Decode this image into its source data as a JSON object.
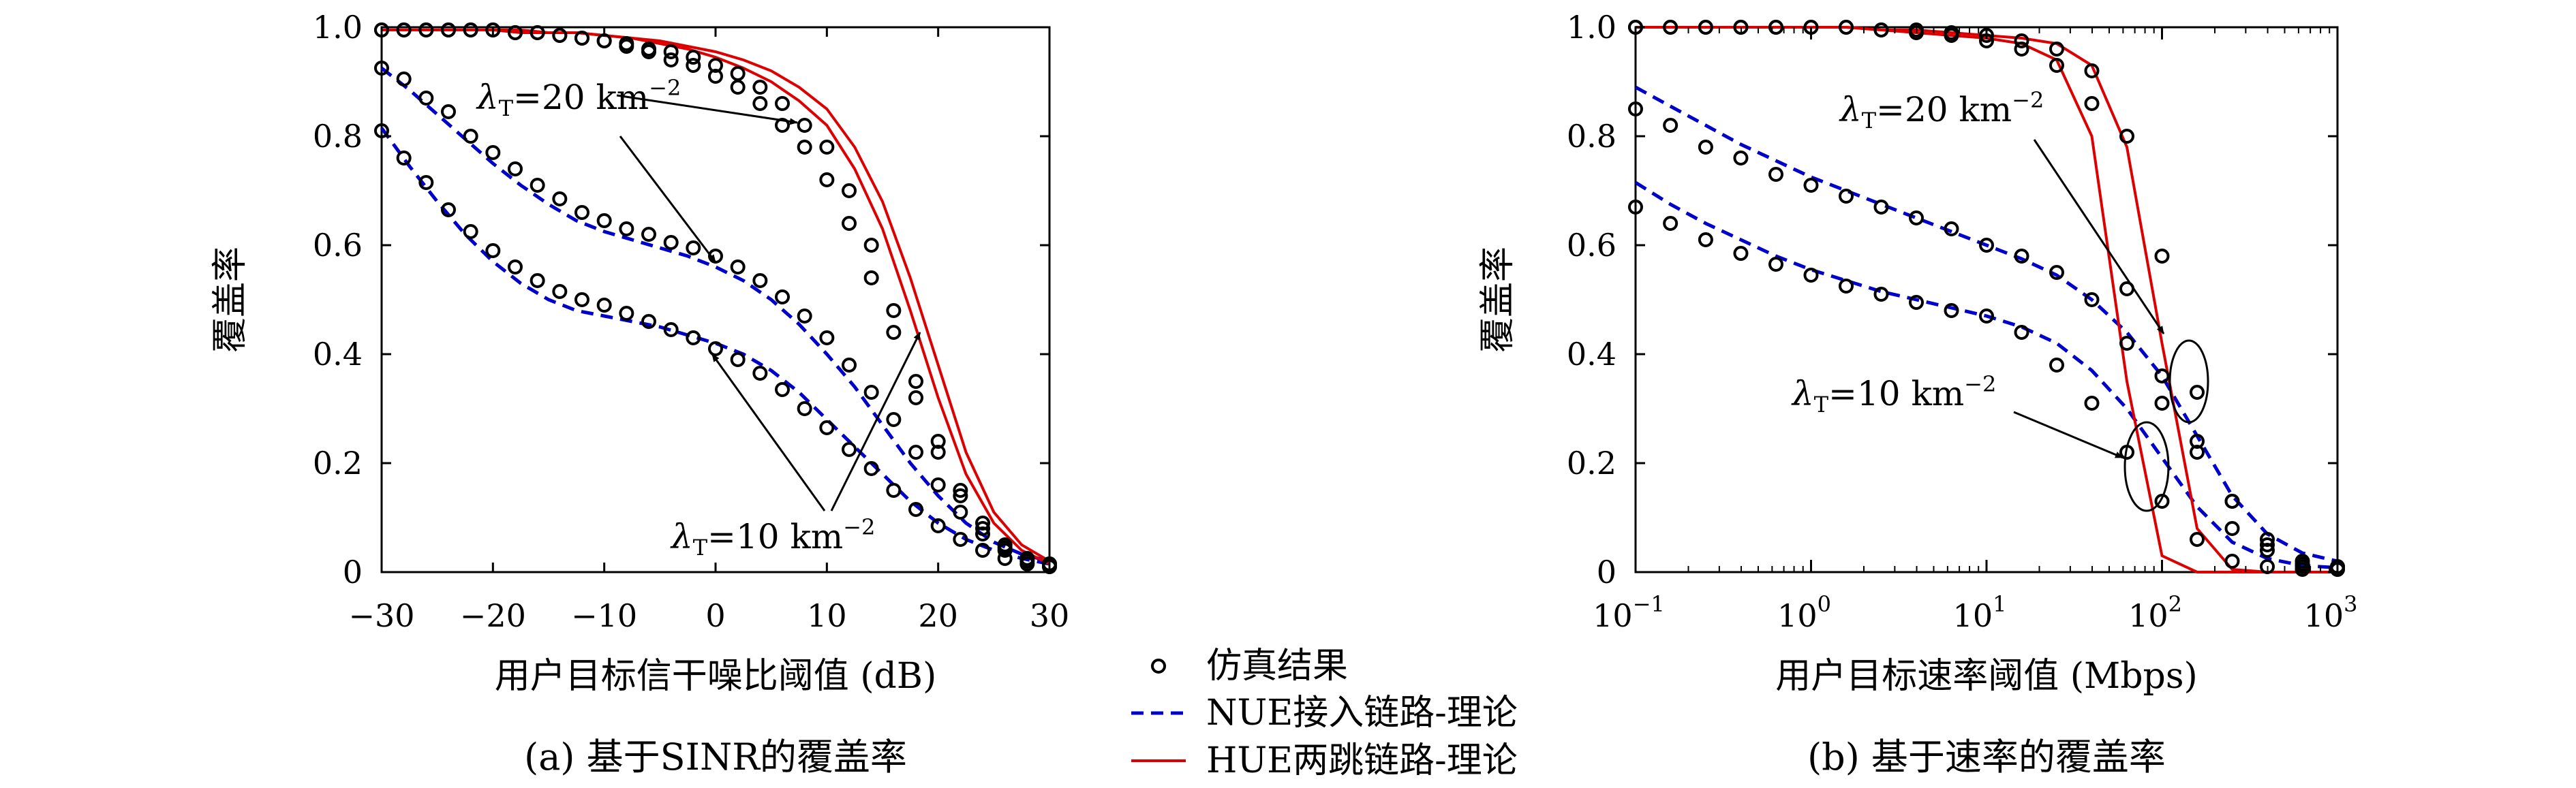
{
  "chart_data": [
    {
      "type": "line",
      "caption": "(a) 基于SINR的覆盖率",
      "xlabel": "用户目标信干噪比阈值 (dB)",
      "ylabel": "覆盖率",
      "xlim": [
        -30,
        30
      ],
      "ylim": [
        0,
        1
      ],
      "xticks": [
        "−30",
        "−20",
        "−10",
        "0",
        "10",
        "20",
        "30"
      ],
      "yticks": [
        "0",
        "0.2",
        "0.4",
        "0.6",
        "0.8",
        "1.0"
      ],
      "annotations": [
        {
          "lambda": "λ",
          "sub": "T",
          "text": "=20 km",
          "sup": "−2"
        },
        {
          "lambda": "λ",
          "sub": "T",
          "text": "=10 km",
          "sup": "−2"
        }
      ],
      "x_curve": [
        -30,
        -27.5,
        -25,
        -22.5,
        -20,
        -17.5,
        -15,
        -12.5,
        -10,
        -7.5,
        -5,
        -2.5,
        0,
        2.5,
        5,
        7.5,
        10,
        12.5,
        15,
        17.5,
        20,
        22.5,
        25,
        27.5,
        30
      ],
      "x_sim": [
        -30,
        -28,
        -26,
        -24,
        -22,
        -20,
        -18,
        -16,
        -14,
        -12,
        -10,
        -8,
        -6,
        -4,
        -2,
        0,
        2,
        4,
        6,
        8,
        10,
        12,
        14,
        16,
        18,
        20,
        22,
        24,
        26,
        28,
        30
      ],
      "series": [
        {
          "name": "NUE接入链路-理论",
          "group": "λT=20",
          "color": "#0000cc",
          "style": "dashed",
          "values": [
            0.925,
            0.885,
            0.84,
            0.795,
            0.75,
            0.71,
            0.675,
            0.645,
            0.625,
            0.61,
            0.595,
            0.58,
            0.56,
            0.535,
            0.5,
            0.455,
            0.4,
            0.34,
            0.27,
            0.2,
            0.14,
            0.09,
            0.055,
            0.033,
            0.02
          ]
        },
        {
          "name": "NUE接入链路-理论",
          "group": "λT=10",
          "color": "#0000cc",
          "style": "dashed",
          "values": [
            0.815,
            0.745,
            0.68,
            0.62,
            0.57,
            0.53,
            0.5,
            0.48,
            0.47,
            0.46,
            0.45,
            0.435,
            0.42,
            0.4,
            0.37,
            0.33,
            0.28,
            0.23,
            0.18,
            0.13,
            0.09,
            0.06,
            0.04,
            0.025,
            0.015
          ]
        },
        {
          "name": "HUE两跳链路-理论",
          "group": "λT=20",
          "color": "#dd0000",
          "style": "solid",
          "values": [
            0.995,
            0.995,
            0.995,
            0.995,
            0.995,
            0.995,
            0.99,
            0.99,
            0.985,
            0.98,
            0.975,
            0.965,
            0.955,
            0.94,
            0.92,
            0.89,
            0.85,
            0.78,
            0.68,
            0.54,
            0.38,
            0.22,
            0.11,
            0.05,
            0.02
          ]
        },
        {
          "name": "HUE两跳链路-理论",
          "group": "λT=10",
          "color": "#dd0000",
          "style": "solid",
          "values": [
            0.995,
            0.995,
            0.995,
            0.995,
            0.995,
            0.99,
            0.99,
            0.99,
            0.985,
            0.98,
            0.97,
            0.96,
            0.945,
            0.925,
            0.9,
            0.865,
            0.82,
            0.74,
            0.63,
            0.48,
            0.32,
            0.18,
            0.09,
            0.04,
            0.015
          ]
        }
      ],
      "sim": [
        {
          "values": [
            0.995,
            0.995,
            0.995,
            0.995,
            0.995,
            0.995,
            0.99,
            0.99,
            0.985,
            0.98,
            0.975,
            0.97,
            0.96,
            0.955,
            0.945,
            0.93,
            0.915,
            0.89,
            0.86,
            0.82,
            0.78,
            0.7,
            0.6,
            0.48,
            0.35,
            0.24,
            0.15,
            0.09,
            0.05,
            0.025,
            0.015
          ]
        },
        {
          "values": [
            0.995,
            0.995,
            0.995,
            0.995,
            0.995,
            0.995,
            0.99,
            0.99,
            0.985,
            0.98,
            0.975,
            0.965,
            0.955,
            0.94,
            0.93,
            0.91,
            0.89,
            0.86,
            0.82,
            0.78,
            0.72,
            0.64,
            0.54,
            0.44,
            0.32,
            0.22,
            0.14,
            0.08,
            0.045,
            0.02,
            0.01
          ]
        },
        {
          "values": [
            0.925,
            0.905,
            0.87,
            0.845,
            0.8,
            0.77,
            0.74,
            0.71,
            0.685,
            0.66,
            0.645,
            0.63,
            0.62,
            0.605,
            0.595,
            0.58,
            0.56,
            0.535,
            0.505,
            0.47,
            0.43,
            0.38,
            0.33,
            0.28,
            0.22,
            0.16,
            0.11,
            0.07,
            0.04,
            0.025,
            0.015
          ]
        },
        {
          "values": [
            0.81,
            0.76,
            0.715,
            0.665,
            0.625,
            0.59,
            0.56,
            0.535,
            0.515,
            0.5,
            0.49,
            0.475,
            0.46,
            0.445,
            0.43,
            0.41,
            0.39,
            0.365,
            0.335,
            0.3,
            0.265,
            0.225,
            0.19,
            0.15,
            0.115,
            0.085,
            0.06,
            0.04,
            0.025,
            0.015,
            0.01
          ]
        }
      ]
    },
    {
      "type": "line",
      "caption": "(b) 基于速率的覆盖率",
      "xlabel": "用户目标速率阈值 (Mbps)",
      "ylabel": "覆盖率",
      "xscale": "log",
      "xlim": [
        0.1,
        1000
      ],
      "ylim": [
        0,
        1
      ],
      "xticks": [
        {
          "base": "10",
          "exp": "−1"
        },
        {
          "base": "10",
          "exp": "0"
        },
        {
          "base": "10",
          "exp": "1"
        },
        {
          "base": "10",
          "exp": "2"
        },
        {
          "base": "10",
          "exp": "3"
        }
      ],
      "yticks": [
        "0",
        "0.2",
        "0.4",
        "0.6",
        "0.8",
        "1.0"
      ],
      "annotations": [
        {
          "lambda": "λ",
          "sub": "T",
          "text": "=20 km",
          "sup": "−2"
        },
        {
          "lambda": "λ",
          "sub": "T",
          "text": "=10 km",
          "sup": "−2"
        }
      ],
      "x_curve": [
        0.1,
        0.158,
        0.251,
        0.398,
        0.631,
        1,
        1.585,
        2.512,
        3.981,
        6.31,
        10,
        15.85,
        25.12,
        39.81,
        63.1,
        100,
        158.5,
        251.2,
        398.1,
        631,
        1000
      ],
      "x_sim": [
        0.1,
        0.158,
        0.251,
        0.398,
        0.631,
        1,
        1.585,
        2.512,
        3.981,
        6.31,
        10,
        15.85,
        25.12,
        39.81,
        63.1,
        100,
        158.5,
        251.2,
        398.1,
        631,
        1000
      ],
      "series": [
        {
          "name": "NUE接入链路-理论",
          "group": "λT=20",
          "color": "#0000cc",
          "style": "dashed",
          "values": [
            0.89,
            0.855,
            0.82,
            0.785,
            0.755,
            0.725,
            0.7,
            0.675,
            0.65,
            0.625,
            0.6,
            0.575,
            0.545,
            0.5,
            0.44,
            0.36,
            0.25,
            0.14,
            0.07,
            0.035,
            0.02
          ]
        },
        {
          "name": "NUE接入链路-理论",
          "group": "λT=10",
          "color": "#0000cc",
          "style": "dashed",
          "values": [
            0.715,
            0.675,
            0.64,
            0.61,
            0.58,
            0.555,
            0.535,
            0.515,
            0.5,
            0.485,
            0.47,
            0.45,
            0.42,
            0.37,
            0.3,
            0.21,
            0.12,
            0.055,
            0.025,
            0.012,
            0.008
          ]
        },
        {
          "name": "HUE两跳链路-理论",
          "group": "λT=20",
          "color": "#dd0000",
          "style": "solid",
          "values": [
            1,
            1,
            1,
            1,
            1,
            1,
            1,
            0.995,
            0.995,
            0.99,
            0.985,
            0.98,
            0.97,
            0.93,
            0.78,
            0.42,
            0.08,
            0.005,
            0,
            0,
            0
          ]
        },
        {
          "name": "HUE两跳链路-理论",
          "group": "λT=10",
          "color": "#dd0000",
          "style": "solid",
          "values": [
            1,
            1,
            1,
            1,
            1,
            1,
            1,
            0.995,
            0.99,
            0.985,
            0.98,
            0.97,
            0.94,
            0.8,
            0.35,
            0.03,
            0,
            0,
            0,
            0,
            0
          ]
        }
      ],
      "sim": [
        {
          "values": [
            1,
            1,
            1,
            1,
            1,
            1,
            1,
            0.995,
            0.995,
            0.99,
            0.985,
            0.975,
            0.96,
            0.92,
            0.8,
            0.58,
            0.33,
            0.13,
            0.06,
            0.015,
            0.01
          ]
        },
        {
          "values": [
            1,
            1,
            1,
            1,
            1,
            1,
            1,
            0.995,
            0.99,
            0.985,
            0.975,
            0.96,
            0.93,
            0.86,
            0.52,
            0.31,
            0.22,
            0.08,
            0.04,
            0.01,
            0.005
          ]
        },
        {
          "values": [
            0.85,
            0.82,
            0.78,
            0.76,
            0.73,
            0.71,
            0.69,
            0.67,
            0.65,
            0.63,
            0.6,
            0.58,
            0.55,
            0.5,
            0.42,
            0.36,
            0.24,
            0.13,
            0.05,
            0.02,
            0.01
          ]
        },
        {
          "values": [
            0.67,
            0.64,
            0.61,
            0.585,
            0.565,
            0.545,
            0.525,
            0.51,
            0.495,
            0.48,
            0.47,
            0.44,
            0.38,
            0.31,
            0.22,
            0.13,
            0.06,
            0.02,
            0.01,
            0.005,
            0.005
          ]
        }
      ]
    }
  ],
  "legend": {
    "sim_label": "仿真结果",
    "nue_label": "NUE接入链路-理论",
    "hue_label": "HUE两跳链路-理论"
  },
  "colors": {
    "nue": "#0000cc",
    "hue": "#dd0000",
    "sim": "#000000"
  }
}
